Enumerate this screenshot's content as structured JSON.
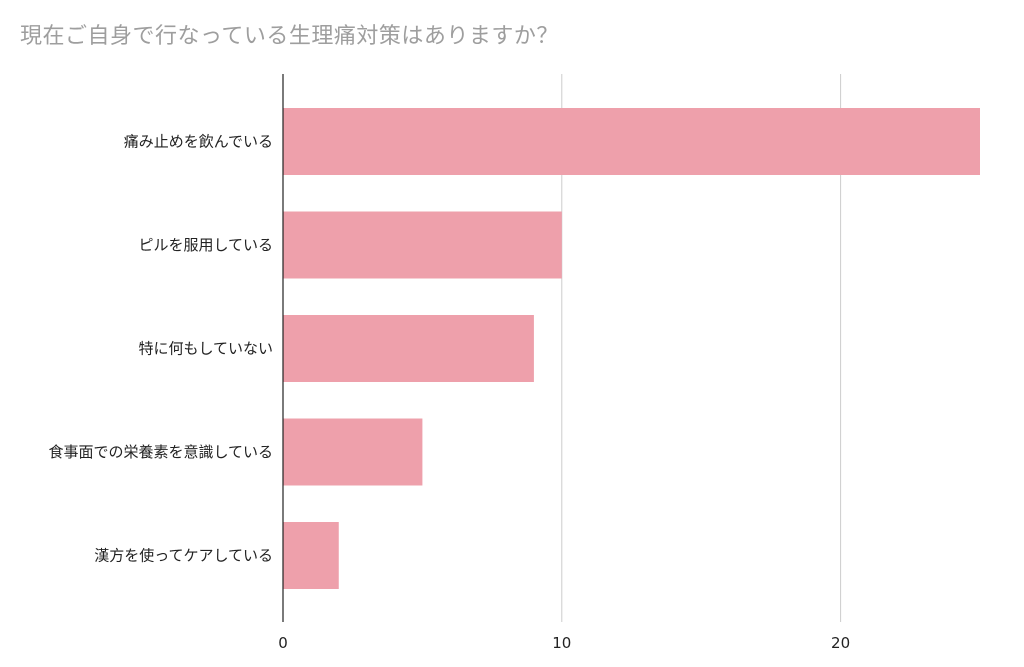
{
  "chart_data": {
    "type": "bar",
    "orientation": "horizontal",
    "title": "現在ご自身で行なっている生理痛対策はありますか？",
    "xlabel": "",
    "ylabel": "",
    "categories": [
      "痛み止めを飲んでいる",
      "ピルを服用している",
      "特に何もしていない",
      "食事面での栄養素を意識している",
      "漢方を使ってケアしている"
    ],
    "values": [
      25,
      10,
      9,
      5,
      2
    ],
    "xlim": [
      0,
      25
    ],
    "xticks": [
      "0",
      "10",
      "20"
    ],
    "grid": true,
    "legend": "none",
    "bar_color": "#eea0ab",
    "grid_color": "#cccccc",
    "axis_color": "#222222",
    "title_color": "#9e9e9e"
  }
}
